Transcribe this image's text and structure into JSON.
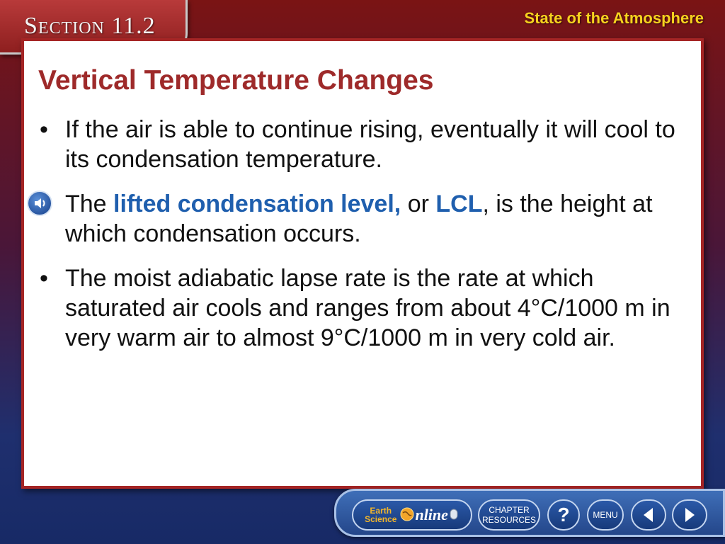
{
  "header": {
    "section_label": "Section 11.2",
    "topic": "State of the Atmosphere"
  },
  "slide": {
    "title": "Vertical Temperature Changes",
    "items": [
      {
        "bullet": "•",
        "text": "If the air is able to continue rising, eventually it will cool to its condensation temperature."
      },
      {
        "pre": "The ",
        "term1": "lifted condensation level,",
        "mid": " or ",
        "term2": "LCL",
        "post": ", is the height at which condensation occurs."
      },
      {
        "bullet": "•",
        "text": "The moist adiabatic lapse rate is the rate at which saturated air cools and ranges from about 4°C/1000 m in very warm air to almost 9°C/1000 m in very cold air."
      }
    ]
  },
  "nav": {
    "earth_science_line1": "Earth",
    "earth_science_line2": "Science",
    "online": "nline",
    "chapter_resources_line1": "CHAPTER",
    "chapter_resources_line2": "RESOURCES",
    "help": "?",
    "menu": "MENU"
  },
  "colors": {
    "title": "#9e2a2a",
    "term": "#1f5fae",
    "topic": "#f6d21e"
  },
  "icons": [
    "speaker-icon",
    "globe-icon",
    "mouse-icon",
    "arrow-left-icon",
    "arrow-right-icon"
  ]
}
